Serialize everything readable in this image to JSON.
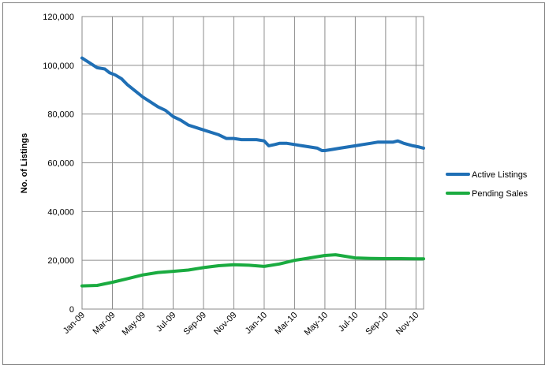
{
  "chart_data": {
    "type": "line",
    "title": "",
    "xlabel": "",
    "ylabel": "No. of Listings",
    "ylim": [
      0,
      120000
    ],
    "yticks": [
      0,
      20000,
      40000,
      60000,
      80000,
      100000,
      120000
    ],
    "ytick_labels": [
      "0",
      "20,000",
      "40,000",
      "60,000",
      "80,000",
      "100,000",
      "120,000"
    ],
    "x_months": 23,
    "xtick_labels": [
      "Jan-09",
      "Mar-09",
      "May-09",
      "Jul-09",
      "Sep-09",
      "Nov-09",
      "Jan-10",
      "Mar-10",
      "May-10",
      "Jul-10",
      "Sep-10",
      "Nov-10"
    ],
    "grid": true,
    "legend_position": "right",
    "series": [
      {
        "name": "Active Listings",
        "color": "#1f6fb5",
        "points": [
          [
            0,
            103000
          ],
          [
            0.25,
            102000
          ],
          [
            0.5,
            101000
          ],
          [
            0.75,
            100000
          ],
          [
            1,
            99000
          ],
          [
            1.5,
            98500
          ],
          [
            1.8,
            97000
          ],
          [
            2.2,
            96000
          ],
          [
            2.6,
            94500
          ],
          [
            3,
            92000
          ],
          [
            3.5,
            89500
          ],
          [
            4,
            87000
          ],
          [
            4.5,
            85000
          ],
          [
            5,
            83000
          ],
          [
            5.5,
            81500
          ],
          [
            6,
            79000
          ],
          [
            6.5,
            77500
          ],
          [
            7,
            75500
          ],
          [
            7.5,
            74500
          ],
          [
            8,
            73500
          ],
          [
            8.5,
            72500
          ],
          [
            9,
            71500
          ],
          [
            9.5,
            70000
          ],
          [
            10,
            70000
          ],
          [
            10.5,
            69500
          ],
          [
            11,
            69500
          ],
          [
            11.5,
            69500
          ],
          [
            12,
            69000
          ],
          [
            12.3,
            67000
          ],
          [
            12.7,
            67500
          ],
          [
            13,
            68000
          ],
          [
            13.5,
            68000
          ],
          [
            14,
            67500
          ],
          [
            14.5,
            67000
          ],
          [
            15,
            66500
          ],
          [
            15.5,
            66000
          ],
          [
            15.8,
            65000
          ],
          [
            16,
            65000
          ],
          [
            16.5,
            65500
          ],
          [
            17,
            66000
          ],
          [
            17.5,
            66500
          ],
          [
            18,
            67000
          ],
          [
            18.5,
            67500
          ],
          [
            19,
            68000
          ],
          [
            19.5,
            68500
          ],
          [
            20,
            68500
          ],
          [
            20.5,
            68500
          ],
          [
            20.8,
            69000
          ],
          [
            21.2,
            68000
          ],
          [
            21.8,
            67000
          ],
          [
            22.2,
            66500
          ],
          [
            22.5,
            66000
          ]
        ]
      },
      {
        "name": "Pending Sales",
        "color": "#1aab40",
        "points": [
          [
            0,
            9500
          ],
          [
            1,
            9700
          ],
          [
            2,
            11000
          ],
          [
            3,
            12500
          ],
          [
            4,
            14000
          ],
          [
            5,
            15000
          ],
          [
            6,
            15500
          ],
          [
            7,
            16000
          ],
          [
            8,
            17000
          ],
          [
            9,
            17800
          ],
          [
            10,
            18200
          ],
          [
            11,
            18000
          ],
          [
            12,
            17500
          ],
          [
            13,
            18500
          ],
          [
            14,
            20000
          ],
          [
            15,
            21000
          ],
          [
            16,
            22000
          ],
          [
            16.7,
            22300
          ],
          [
            17,
            22000
          ],
          [
            18,
            21000
          ],
          [
            19,
            20800
          ],
          [
            20,
            20700
          ],
          [
            20.5,
            20700
          ],
          [
            21,
            20700
          ],
          [
            22,
            20600
          ],
          [
            22.5,
            20600
          ]
        ]
      }
    ]
  }
}
